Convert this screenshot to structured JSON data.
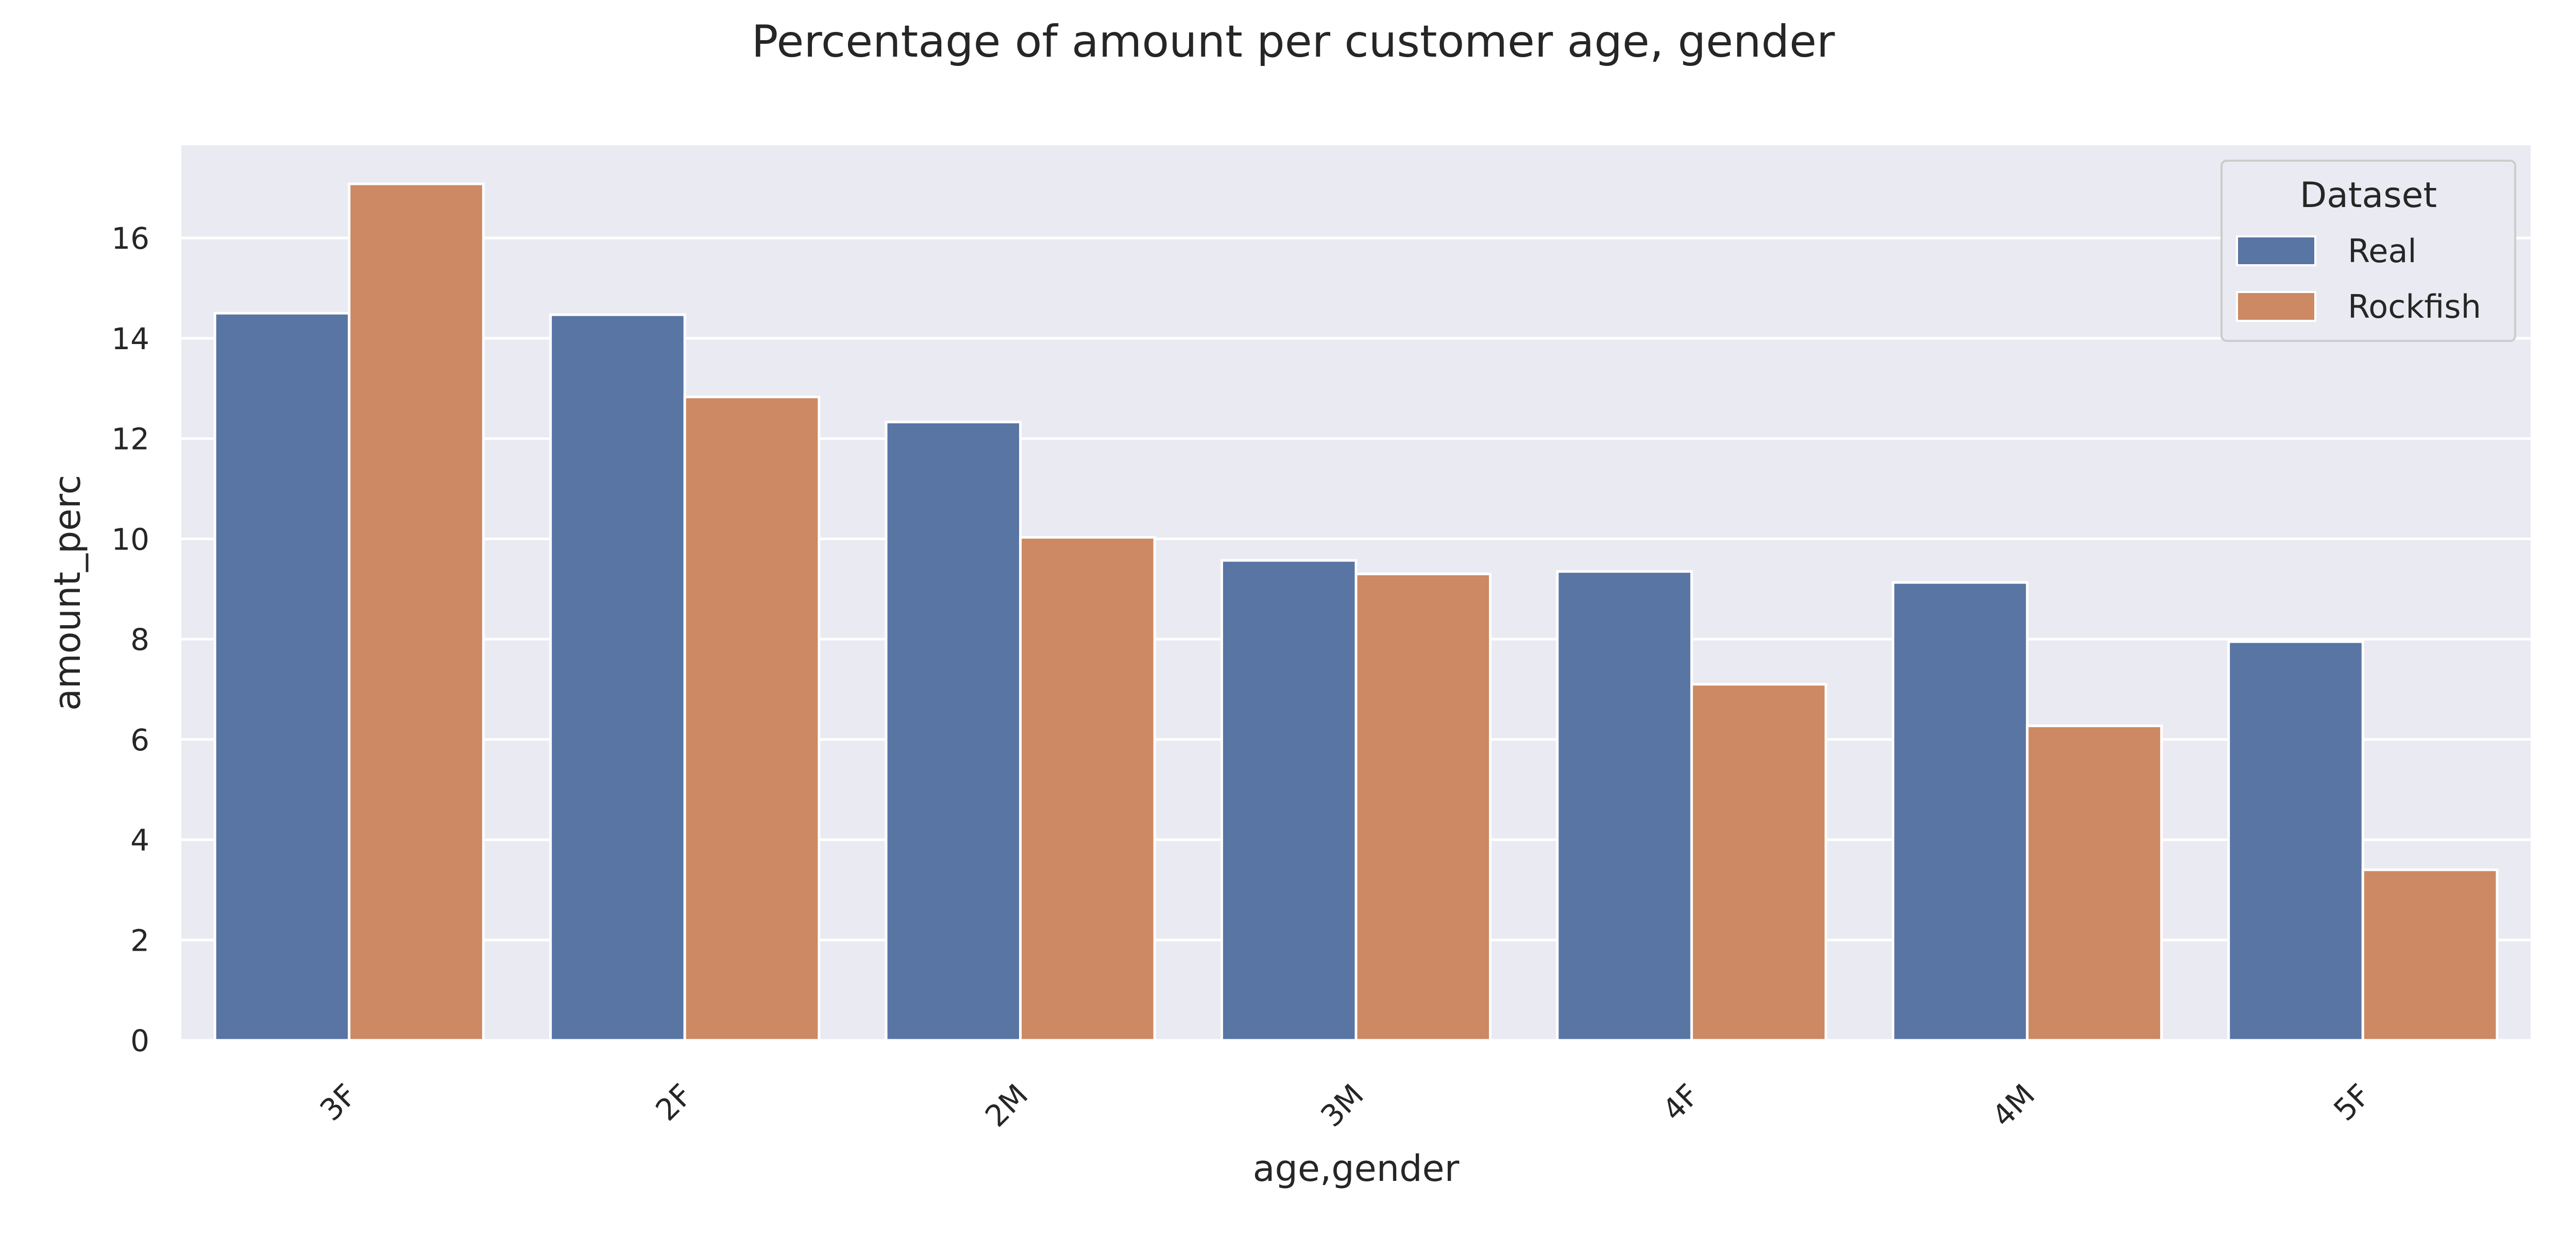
{
  "chart_data": {
    "type": "bar",
    "title": "Percentage of amount per customer age, gender",
    "xlabel": "age,gender",
    "ylabel": "amount_perc",
    "categories": [
      "3F",
      "2F",
      "2M",
      "3M",
      "4F",
      "4M",
      "5F"
    ],
    "series": [
      {
        "name": "Real",
        "color": "#5975a4",
        "values": [
          14.5,
          14.47,
          12.33,
          9.57,
          9.35,
          9.13,
          7.95
        ]
      },
      {
        "name": "Rockfish",
        "color": "#cc8963",
        "values": [
          17.08,
          12.83,
          10.03,
          9.3,
          7.1,
          6.27,
          3.4
        ]
      }
    ],
    "ylim": [
      0,
      17.85
    ],
    "yticks": [
      0,
      2,
      4,
      6,
      8,
      10,
      12,
      14,
      16
    ],
    "grid": true,
    "legend": {
      "title": "Dataset",
      "placement": "top-right"
    },
    "colors": {
      "plot_background": "#eaeaf2",
      "grid": "#ffffff"
    }
  }
}
